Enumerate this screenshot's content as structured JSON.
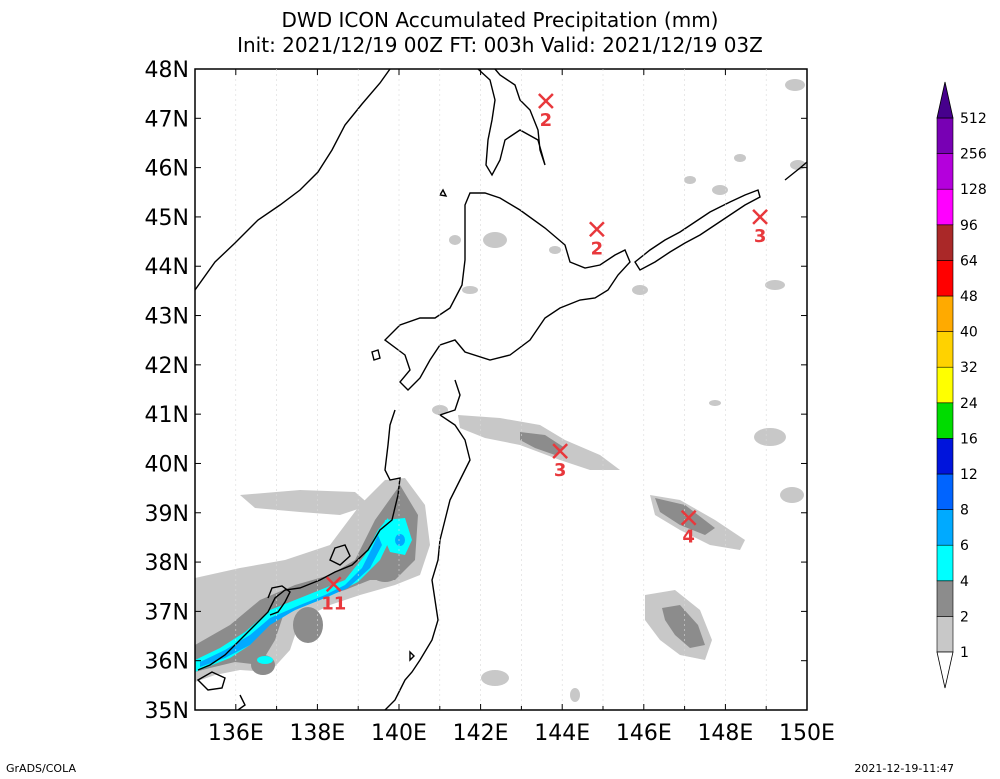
{
  "title": {
    "line1": "DWD ICON Accumulated Precipitation (mm)",
    "line2": "Init: 2021/12/19 00Z  FT: 003h  Valid: 2021/12/19 03Z"
  },
  "axes": {
    "lon_labels": [
      "136E",
      "138E",
      "140E",
      "142E",
      "144E",
      "146E",
      "148E",
      "150E"
    ],
    "lat_labels": [
      "35N",
      "36N",
      "37N",
      "38N",
      "39N",
      "40N",
      "41N",
      "42N",
      "43N",
      "44N",
      "45N",
      "46N",
      "47N",
      "48N"
    ],
    "lon_range": [
      135,
      150
    ],
    "lat_range": [
      35,
      48
    ]
  },
  "colorbar": {
    "labels": [
      "1",
      "2",
      "4",
      "6",
      "8",
      "12",
      "16",
      "24",
      "32",
      "40",
      "48",
      "64",
      "96",
      "128",
      "256",
      "512"
    ],
    "colors": [
      "#ffffff",
      "#c8c8c8",
      "#8c8c8c",
      "#00ffff",
      "#00aaff",
      "#0064ff",
      "#0014dc",
      "#00dc00",
      "#ffff00",
      "#ffd200",
      "#ffaa00",
      "#ff0000",
      "#aa2828",
      "#ff00ff",
      "#b400dc",
      "#7800b4",
      "#46008c"
    ]
  },
  "maxima": [
    {
      "lon": 143.6,
      "lat": 47.35,
      "label": "2"
    },
    {
      "lon": 144.85,
      "lat": 44.75,
      "label": "2"
    },
    {
      "lon": 148.85,
      "lat": 45.0,
      "label": "3"
    },
    {
      "lon": 143.95,
      "lat": 40.25,
      "label": "3"
    },
    {
      "lon": 147.1,
      "lat": 38.9,
      "label": "4"
    },
    {
      "lon": 138.4,
      "lat": 37.55,
      "label": "11"
    }
  ],
  "footer": {
    "left": "GrADS/COLA",
    "right": "2021-12-19-11:47"
  },
  "colors": {
    "marker": "#e8383c",
    "light_gray": "#c8c8c8",
    "dark_gray": "#8c8c8c",
    "cyan": "#00ffff",
    "sky": "#00aaff"
  }
}
